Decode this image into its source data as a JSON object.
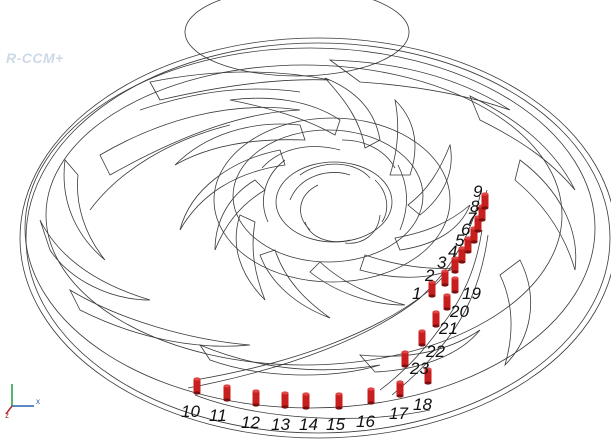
{
  "app": {
    "logo_text": "R-CCM+"
  },
  "colors": {
    "wire": "#3a3a3a",
    "probe": "#c81e1e",
    "probe_dark": "#7a0f0f",
    "label": "#111111",
    "logo": "#cdd9e6",
    "axis_x": "#2a5fb0",
    "axis_y": "#1f9a3c",
    "axis_z": "#b02a2a"
  },
  "probes": {
    "labels": [
      "1",
      "2",
      "3",
      "4",
      "5",
      "6",
      "7",
      "8",
      "9",
      "10",
      "11",
      "12",
      "13",
      "14",
      "15",
      "16",
      "17",
      "18",
      "19",
      "20",
      "21",
      "22",
      "23"
    ],
    "count": 23
  },
  "triad": {
    "x_label": "x",
    "z_label": "z"
  }
}
